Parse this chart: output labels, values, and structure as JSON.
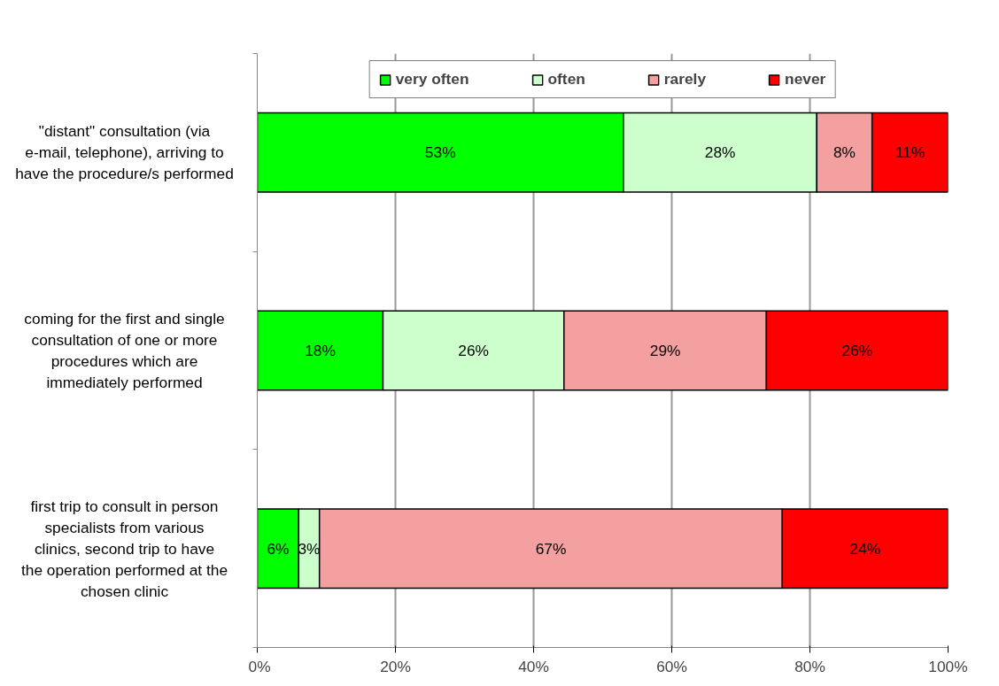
{
  "chart_data": {
    "type": "bar",
    "orientation": "horizontal",
    "stacked": true,
    "categories": [
      "\"distant\" consultation (via e-mail, telephone), arriving to have the procedure/s performed",
      "coming for the first and single consultation of one or more procedures which are immediately performed",
      "first trip to consult in person specialists from various clinics, second trip to have the operation performed at the chosen clinic"
    ],
    "series": [
      {
        "name": "very often",
        "color": "#00ff00",
        "values": [
          53,
          18.2,
          6
        ],
        "value_labels": [
          "53%",
          "18%",
          "6%"
        ]
      },
      {
        "name": "often",
        "color": "#ccffcc",
        "values": [
          28,
          26.2,
          3
        ],
        "value_labels": [
          "28%",
          "26%",
          "3%"
        ]
      },
      {
        "name": "rarely",
        "color": "#f4a0a0",
        "values": [
          8,
          29.3,
          67
        ],
        "value_labels": [
          "8%",
          "29%",
          "67%"
        ]
      },
      {
        "name": "never",
        "color": "#ff0000",
        "values": [
          11,
          26.3,
          24
        ],
        "value_labels": [
          "11%",
          "26%",
          "24%"
        ]
      }
    ],
    "xlim": [
      0,
      100
    ],
    "xticks": [
      {
        "value": 0,
        "label": "0%"
      },
      {
        "value": 20,
        "label": "20%"
      },
      {
        "value": 40,
        "label": "40%"
      },
      {
        "value": 60,
        "label": "60%"
      },
      {
        "value": 80,
        "label": "80%"
      },
      {
        "value": 100,
        "label": "100%"
      }
    ],
    "grid": "x",
    "legend": "top"
  }
}
